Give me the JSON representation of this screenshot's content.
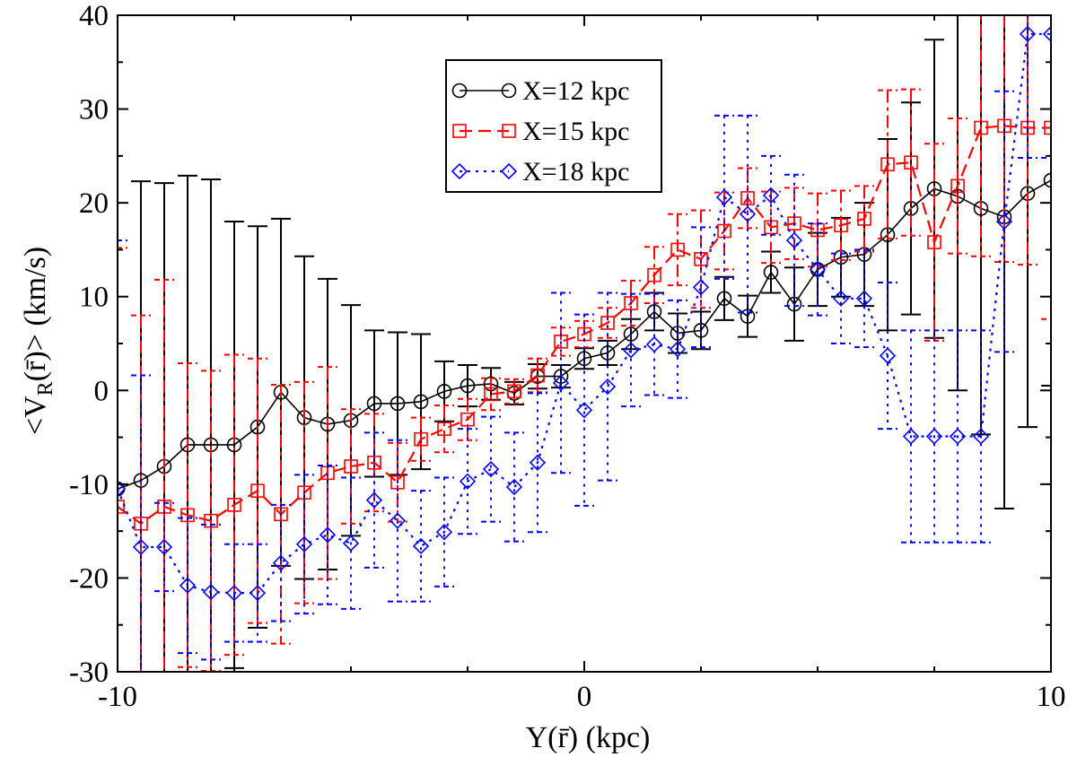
{
  "chart_data": {
    "type": "line",
    "title": "",
    "xlabel": "Y(r̄) (kpc)",
    "ylabel_parts": {
      "prefix": "<V",
      "sub": "R",
      "suffix": "(r̄)> (km/s)"
    },
    "xlim": [
      -10,
      10
    ],
    "ylim": [
      -30,
      40
    ],
    "x_ticks": [
      -10,
      0,
      10
    ],
    "y_ticks": [
      -30,
      -20,
      -10,
      0,
      10,
      20,
      30,
      40
    ],
    "legend_position": "top-center",
    "series": [
      {
        "name": "X=12 kpc",
        "color": "#000000",
        "dash": "solid",
        "marker": "circle",
        "x": [
          -10,
          -9.5,
          -9,
          -8.5,
          -8,
          -7.5,
          -7,
          -6.5,
          -6,
          -5.5,
          -5,
          -4.5,
          -4,
          -3.5,
          -3,
          -2.5,
          -2,
          -1.5,
          -1,
          -0.5,
          0,
          0.5,
          1,
          1.5,
          2,
          2.5,
          3,
          3.5,
          4,
          4.5,
          5,
          5.5,
          6,
          6.5,
          7,
          7.5,
          8,
          8.5,
          9,
          9.5,
          10
        ],
        "y": [
          -10.5,
          -9.6,
          -8.1,
          -5.8,
          -5.8,
          -5.8,
          -3.9,
          -0.2,
          -2.9,
          -3.6,
          -3.2,
          -1.4,
          -1.4,
          -1.2,
          -0.1,
          0.5,
          0.7,
          -0.3,
          1.5,
          1.5,
          3.4,
          4.0,
          6.0,
          8.4,
          6.1,
          6.4,
          9.8,
          7.9,
          12.6,
          9.2,
          12.9,
          14.2,
          14.5,
          16.6,
          19.4,
          21.5,
          20.7,
          19.4,
          18.5,
          21.0,
          22.4
        ],
        "err": [
          0,
          31.9,
          30.2,
          28.7,
          28.3,
          23.8,
          21.4,
          18.5,
          17.2,
          15.5,
          12.3,
          7.8,
          7.6,
          7.2,
          3.2,
          2.2,
          1.7,
          1.2,
          1.3,
          1.2,
          1.1,
          1.3,
          1.6,
          2.0,
          2.1,
          2.0,
          2.3,
          2.2,
          2.2,
          3.9,
          3.9,
          4.2,
          5.5,
          10.2,
          11.3,
          15.9,
          20.7,
          24.1,
          31.1,
          24.9,
          21.9
        ]
      },
      {
        "name": "X=15 kpc",
        "color": "#ff0000",
        "dash": "dash",
        "marker": "square",
        "x": [
          -10,
          -9.5,
          -9,
          -8.5,
          -8,
          -7.5,
          -7,
          -6.5,
          -6,
          -5.5,
          -5,
          -4.5,
          -4,
          -3.5,
          -3,
          -2.5,
          -2,
          -1.5,
          -1,
          -0.5,
          0,
          0.5,
          1,
          1.5,
          2,
          2.5,
          3,
          3.5,
          4,
          4.5,
          5,
          5.5,
          6,
          6.5,
          7,
          7.5,
          8,
          8.5,
          9,
          9.5,
          10
        ],
        "y": [
          -12.4,
          -14.2,
          -12.4,
          -13.3,
          -13.9,
          -12.2,
          -10.7,
          -13.2,
          -10.9,
          -8.8,
          -8.1,
          -7.7,
          -9.8,
          -5.2,
          -4.1,
          -3.1,
          -0.4,
          -0.1,
          1.6,
          5.2,
          6.0,
          7.2,
          9.3,
          12.3,
          15.0,
          14.0,
          17.0,
          20.5,
          17.4,
          17.8,
          17.1,
          17.6,
          18.3,
          24.1,
          24.3,
          15.8,
          21.8,
          28.0,
          28.2,
          28.0,
          28.0
        ],
        "err": [
          27.6,
          22.2,
          24.2,
          16.2,
          16.0,
          16.0,
          14.1,
          13.8,
          11.8,
          11.3,
          6.1,
          5.2,
          4.2,
          2.3,
          2.5,
          2.2,
          1.7,
          1.3,
          1.8,
          1.5,
          1.4,
          1.6,
          2.4,
          3.0,
          3.8,
          5.2,
          4.1,
          3.2,
          3.8,
          3.8,
          3.9,
          3.7,
          3.5,
          7.9,
          7.8,
          10.5,
          7.2,
          13.7,
          14.5,
          14.6,
          20.4
        ]
      },
      {
        "name": "X=18 kpc",
        "color": "#0000ff",
        "dash": "dot",
        "marker": "diamond",
        "x": [
          -10,
          -9.5,
          -9,
          -8.5,
          -8,
          -7.5,
          -7,
          -6.5,
          -6,
          -5.5,
          -5,
          -4.5,
          -4,
          -3.5,
          -3,
          -2.5,
          -2,
          -1.5,
          -1,
          -0.5,
          0,
          0.5,
          1,
          1.5,
          2,
          2.5,
          3,
          3.5,
          4,
          4.5,
          5,
          5.5,
          6,
          6.5,
          7,
          7.5,
          8,
          8.5,
          9,
          9.5,
          10
        ],
        "y": [
          -10.5,
          -16.7,
          -16.7,
          -20.8,
          -21.5,
          -21.6,
          -21.6,
          -18.4,
          -16.4,
          -15.4,
          -16.3,
          -11.7,
          -13.9,
          -16.6,
          -15.1,
          -9.7,
          -8.4,
          -10.3,
          -7.7,
          0.8,
          -2.1,
          0.4,
          4.3,
          4.9,
          4.4,
          11.0,
          20.6,
          18.8,
          20.8,
          16.0,
          12.9,
          9.8,
          9.8,
          3.7,
          -4.9,
          -4.9,
          -4.9,
          -4.9,
          18.0,
          38.0,
          38.0
        ],
        "err": [
          26.5,
          18.3,
          4.7,
          7.2,
          7.2,
          5.2,
          5.2,
          6.2,
          7.4,
          7.4,
          7.0,
          7.2,
          8.6,
          5.9,
          5.8,
          5.6,
          5.6,
          5.8,
          7.4,
          9.6,
          10.2,
          10.0,
          6.0,
          5.4,
          5.2,
          6.4,
          8.7,
          10.5,
          4.2,
          7.0,
          4.9,
          4.8,
          5.2,
          7.8,
          11.3,
          11.3,
          11.3,
          11.3,
          13.9,
          13.2,
          13.2
        ]
      }
    ]
  }
}
